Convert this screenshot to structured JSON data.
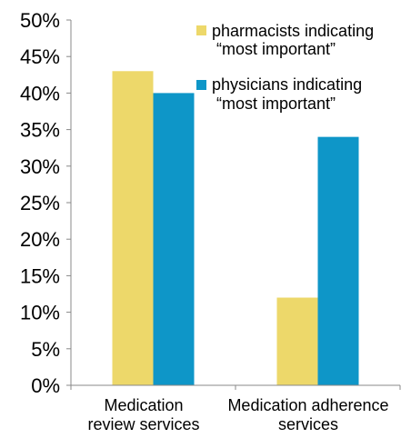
{
  "chart_data": {
    "type": "bar",
    "title": "",
    "xlabel": "",
    "ylabel": "",
    "ylim": [
      0,
      50
    ],
    "y_ticks": [
      0,
      5,
      10,
      15,
      20,
      25,
      30,
      35,
      40,
      45,
      50
    ],
    "y_tick_labels": [
      "0%",
      "5%",
      "10%",
      "15%",
      "20%",
      "25%",
      "30%",
      "35%",
      "40%",
      "45%",
      "50%"
    ],
    "grid": false,
    "legend_position": "top-right",
    "categories": [
      {
        "line1": "Medication",
        "line2": "review  services"
      },
      {
        "line1": "Medication adherence",
        "line2": "services"
      }
    ],
    "series": [
      {
        "name_line1": "pharmacists indicating",
        "name_line2": "“most important”",
        "color": "#EDD86A",
        "values": [
          43,
          12
        ]
      },
      {
        "name_line1": "physicians indicating",
        "name_line2": "“most important”",
        "color": "#0E96C8",
        "values": [
          40,
          34
        ]
      }
    ]
  }
}
